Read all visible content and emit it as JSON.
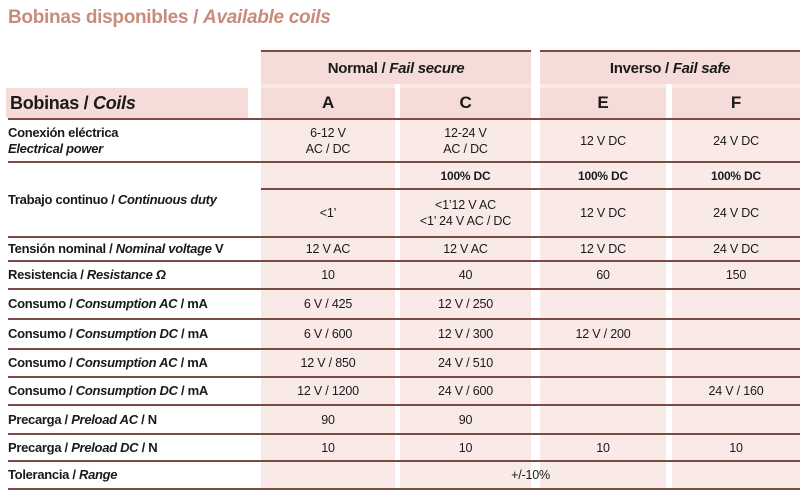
{
  "title": {
    "es": "Bobinas disponibles",
    "sep": " / ",
    "en": "Available coils"
  },
  "colors": {
    "title": "#c98b7c",
    "cell_bg": "#faeae7",
    "header_bg": "#f6dcd8",
    "rule": "#7b4b45"
  },
  "groups": [
    {
      "es": "Normal",
      "en": "Fail secure"
    },
    {
      "es": "Inverso",
      "en": "Fail safe"
    }
  ],
  "header": {
    "es": "Bobinas",
    "en": "Coils",
    "cols": [
      "A",
      "C",
      "E",
      "F"
    ]
  },
  "rows": [
    {
      "es": "Conexión eléctrica",
      "en": "Electrical power",
      "cells": [
        [
          "6-12 V",
          "AC / DC"
        ],
        [
          "12-24 V",
          "AC / DC"
        ],
        [
          "12 V DC"
        ],
        [
          "24 V DC"
        ]
      ]
    },
    {
      "es": "Trabajo continuo",
      "en": "Continuous duty",
      "top": [
        "",
        "100% DC",
        "100% DC",
        "100% DC"
      ],
      "cells": [
        [
          "<1’"
        ],
        [
          "<1’12 V AC",
          "<1’ 24 V AC / DC"
        ],
        [
          "12 V DC"
        ],
        [
          "24 V DC"
        ]
      ]
    },
    {
      "es": "Tensión nominal",
      "en": "Nominal voltage",
      "unit": "V",
      "cells": [
        [
          "12 V AC"
        ],
        [
          "12 V AC"
        ],
        [
          "12 V DC"
        ],
        [
          "24 V DC"
        ]
      ]
    },
    {
      "es": "Resistencia",
      "en": "Resistance Ω",
      "cells": [
        [
          "10"
        ],
        [
          "40"
        ],
        [
          "60"
        ],
        [
          "150"
        ]
      ]
    },
    {
      "es": "Consumo",
      "en": "Consumption AC",
      "unit": "mA",
      "cells": [
        [
          "6 V / 425"
        ],
        [
          "12 V / 250"
        ],
        [
          ""
        ],
        [
          ""
        ]
      ]
    },
    {
      "es": "Consumo",
      "en": "Consumption DC",
      "unit": "mA",
      "cells": [
        [
          "6 V / 600"
        ],
        [
          "12 V / 300"
        ],
        [
          "12 V / 200"
        ],
        [
          ""
        ]
      ]
    },
    {
      "es": "Consumo",
      "en": "Consumption AC",
      "unit": "mA",
      "cells": [
        [
          "12 V / 850"
        ],
        [
          "24 V / 510"
        ],
        [
          ""
        ],
        [
          ""
        ]
      ]
    },
    {
      "es": "Consumo",
      "en": "Consumption DC",
      "unit": "mA",
      "cells": [
        [
          "12 V / 1200"
        ],
        [
          "24 V / 600"
        ],
        [
          ""
        ],
        [
          "24 V / 160"
        ]
      ]
    },
    {
      "es": "Precarga",
      "en": "Preload AC",
      "unit": "N",
      "cells": [
        [
          "90"
        ],
        [
          "90"
        ],
        [
          ""
        ],
        [
          ""
        ]
      ]
    },
    {
      "es": "Precarga",
      "en": "Preload DC",
      "unit": "N",
      "cells": [
        [
          "10"
        ],
        [
          "10"
        ],
        [
          "10"
        ],
        [
          "10"
        ]
      ]
    },
    {
      "es": "Tolerancia",
      "en": "Range",
      "span": "+/-10%"
    }
  ]
}
